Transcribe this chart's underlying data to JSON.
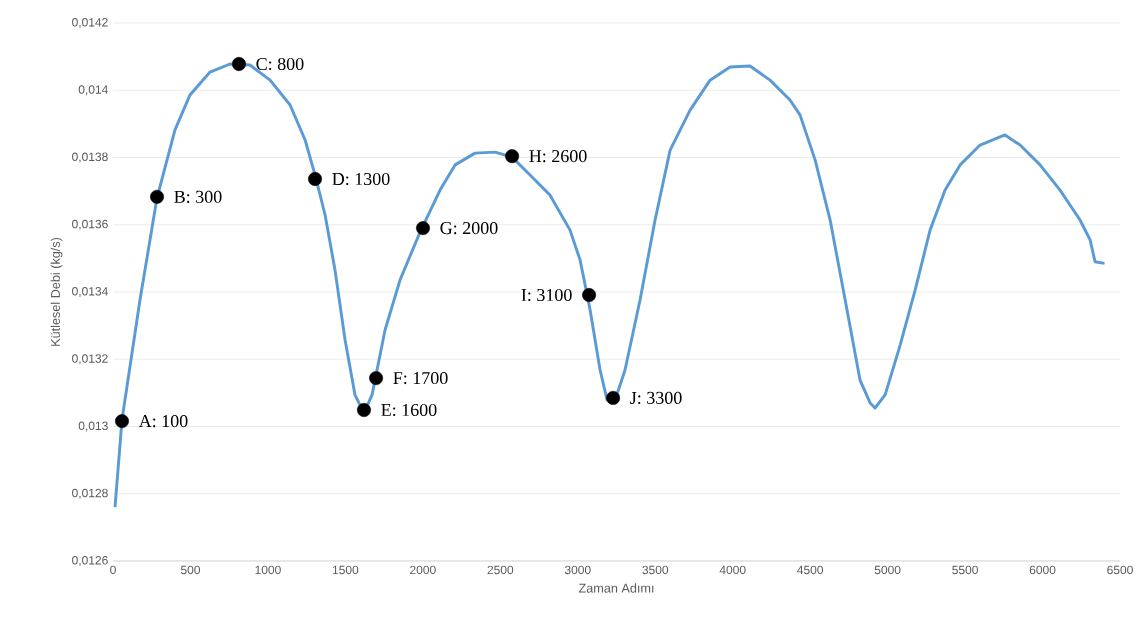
{
  "chart_data": {
    "type": "line",
    "xlabel": "Zaman Adımı",
    "ylabel": "Kütlesel Debi (kg/s)",
    "xlim": [
      0,
      6500
    ],
    "ylim": [
      0.0126,
      0.0142
    ],
    "xticks": [
      0,
      500,
      1000,
      1500,
      2000,
      2500,
      3000,
      3500,
      4000,
      4500,
      5000,
      5500,
      6000,
      6500
    ],
    "yticks": [
      {
        "value": 0.0126,
        "label": "0,0126"
      },
      {
        "value": 0.0128,
        "label": "0,0128"
      },
      {
        "value": 0.013,
        "label": "0,013"
      },
      {
        "value": 0.0132,
        "label": "0,0132"
      },
      {
        "value": 0.0134,
        "label": "0,0134"
      },
      {
        "value": 0.0136,
        "label": "0,0136"
      },
      {
        "value": 0.0138,
        "label": "0,0138"
      },
      {
        "value": 0.014,
        "label": "0,014"
      },
      {
        "value": 0.0142,
        "label": "0,0142"
      }
    ],
    "grid": "y",
    "series": [
      {
        "type": "line",
        "color": "#5b9bd5",
        "marker": "none",
        "x": [
          13,
          58,
          174,
          284,
          400,
          497,
          626,
          755,
          884,
          1014,
          1143,
          1240,
          1304,
          1369,
          1433,
          1498,
          1562,
          1620,
          1672,
          1756,
          1853,
          1982,
          2111,
          2208,
          2337,
          2466,
          2576,
          2692,
          2821,
          2950,
          3015,
          3080,
          3144,
          3189,
          3241,
          3305,
          3402,
          3499,
          3596,
          3725,
          3854,
          3983,
          4112,
          4241,
          4370,
          4435,
          4532,
          4629,
          4726,
          4822,
          4887,
          4919,
          4984,
          5081,
          5178,
          5274,
          5371,
          5468,
          5597,
          5726,
          5758,
          5855,
          5984,
          6113,
          6242,
          6307,
          6339,
          6400
        ],
        "values": [
          0.01276,
          0.01302,
          0.013376,
          0.01368,
          0.013882,
          0.013986,
          0.014054,
          0.014078,
          0.014075,
          0.01403,
          0.013956,
          0.013852,
          0.013748,
          0.013629,
          0.013465,
          0.013257,
          0.013094,
          0.01304,
          0.013094,
          0.013287,
          0.013436,
          0.013578,
          0.013703,
          0.013778,
          0.013813,
          0.013816,
          0.013801,
          0.013748,
          0.013688,
          0.013584,
          0.013495,
          0.013346,
          0.013168,
          0.013079,
          0.013079,
          0.013168,
          0.013376,
          0.013614,
          0.013822,
          0.013941,
          0.01403,
          0.014069,
          0.014072,
          0.01403,
          0.013971,
          0.013926,
          0.013793,
          0.013614,
          0.013376,
          0.013138,
          0.01307,
          0.013055,
          0.013094,
          0.013242,
          0.013406,
          0.013584,
          0.013703,
          0.013778,
          0.013837,
          0.013861,
          0.013867,
          0.013837,
          0.013778,
          0.013703,
          0.013614,
          0.013555,
          0.01349,
          0.013485
        ]
      },
      {
        "type": "scatter",
        "color": "#000000",
        "marker": "circle",
        "x": [
          58,
          284,
          813,
          1304,
          1620,
          1698,
          2001,
          2576,
          3073,
          3228
        ],
        "values": [
          0.013016,
          0.013683,
          0.014078,
          0.013736,
          0.013049,
          0.013144,
          0.01359,
          0.013804,
          0.013391,
          0.013085
        ]
      }
    ],
    "annotations": [
      {
        "text": "A: 100",
        "x": 58,
        "y": 0.013016
      },
      {
        "text": "B: 300",
        "x": 284,
        "y": 0.013683
      },
      {
        "text": "C: 800",
        "x": 813,
        "y": 0.014078
      },
      {
        "text": "D: 1300",
        "x": 1304,
        "y": 0.013736
      },
      {
        "text": "E: 1600",
        "x": 1620,
        "y": 0.013049
      },
      {
        "text": "F: 1700",
        "x": 1698,
        "y": 0.013144
      },
      {
        "text": "G: 2000",
        "x": 2001,
        "y": 0.01359
      },
      {
        "text": "H: 2600",
        "x": 2576,
        "y": 0.013804
      },
      {
        "text": "I: 3100",
        "x": 3073,
        "y": 0.013391
      },
      {
        "text": "J: 3300",
        "x": 3228,
        "y": 0.013085
      }
    ]
  }
}
